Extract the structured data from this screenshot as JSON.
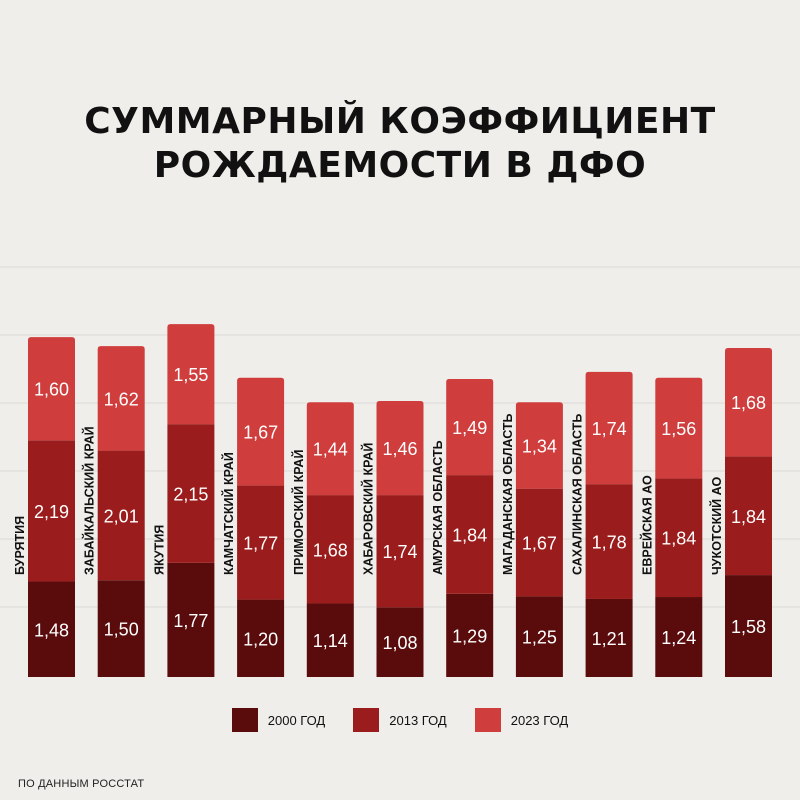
{
  "title_lines": [
    "СУММАРНЫЙ КОЭФФИЦИЕНТ",
    "РОЖДАЕМОСТИ В ДФО"
  ],
  "source": "ПО ДАННЫМ РОССТАТ",
  "colors": {
    "bg": "#f0eeeb",
    "grid": "#dcd9d5",
    "text_on_bar": "#ffffff"
  },
  "chart_data": {
    "type": "bar",
    "stacked": true,
    "categories": [
      "БУРЯТИЯ",
      "ЗАБАЙКАЛЬСКИЙ КРАЙ",
      "ЯКУТИЯ",
      "КАМЧАТСКИЙ КРАЙ",
      "ПРИМОРСКИЙ КРАЙ",
      "ХАБАРОВСКИЙ КРАЙ",
      "АМУРСКАЯ ОБЛАСТЬ",
      "МАГАДАНСКАЯ ОБЛАСТЬ",
      "САХАЛИНСКАЯ ОБЛАСТЬ",
      "ЕВРЕЙСКАЯ АО",
      "ЧУКОТСКИЙ АО"
    ],
    "series": [
      {
        "name": "2000 ГОД",
        "color": "#5a0c0c",
        "values": [
          1.48,
          1.5,
          1.77,
          1.2,
          1.14,
          1.08,
          1.29,
          1.25,
          1.21,
          1.24,
          1.58
        ],
        "labels": [
          "1,48",
          "1,50",
          "1,77",
          "1,20",
          "1,14",
          "1,08",
          "1,29",
          "1,25",
          "1,21",
          "1,24",
          "1,58"
        ]
      },
      {
        "name": "2013 ГОД",
        "color": "#9b1c1c",
        "values": [
          2.19,
          2.01,
          2.15,
          1.77,
          1.68,
          1.74,
          1.84,
          1.67,
          1.78,
          1.84,
          1.84
        ],
        "labels": [
          "2,19",
          "2,01",
          "2,15",
          "1,77",
          "1,68",
          "1,74",
          "1,84",
          "1,67",
          "1,78",
          "1,84",
          "1,84"
        ]
      },
      {
        "name": "2023 ГОД",
        "color": "#cf3d3d",
        "values": [
          1.6,
          1.62,
          1.55,
          1.67,
          1.44,
          1.46,
          1.49,
          1.34,
          1.74,
          1.56,
          1.68
        ],
        "labels": [
          "1,60",
          "1,62",
          "1,55",
          "1,67",
          "1,44",
          "1,46",
          "1,49",
          "1,34",
          "1,74",
          "1,56",
          "1,68"
        ]
      }
    ],
    "ylim": [
      0,
      5.5
    ],
    "grid": true,
    "legend_position": "bottom"
  }
}
